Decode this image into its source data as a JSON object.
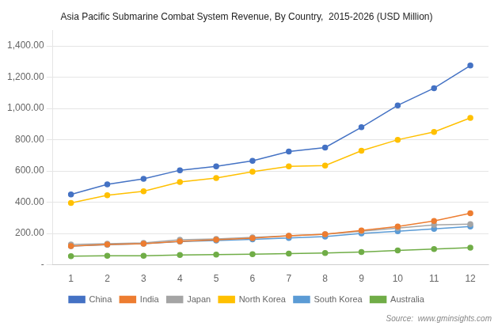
{
  "chart_data": {
    "type": "line",
    "title": "Asia Pacific Submarine Combat System Revenue, By Country,  2015-2026 (USD Million)",
    "x": [
      1,
      2,
      3,
      4,
      5,
      6,
      7,
      8,
      9,
      10,
      11,
      12
    ],
    "xlim": [
      0.5,
      12.5
    ],
    "xticks": [
      1,
      2,
      3,
      4,
      5,
      6,
      7,
      8,
      9,
      10,
      11,
      12
    ],
    "series": [
      {
        "name": "China",
        "color": "#4472C4",
        "values": [
          450,
          515,
          550,
          605,
          630,
          665,
          725,
          750,
          880,
          1020,
          1130,
          1275
        ]
      },
      {
        "name": "India",
        "color": "#ED7D31",
        "values": [
          120,
          130,
          135,
          150,
          160,
          170,
          185,
          195,
          220,
          245,
          280,
          330
        ]
      },
      {
        "name": "Japan",
        "color": "#A5A5A5",
        "values": [
          130,
          135,
          140,
          160,
          165,
          175,
          185,
          195,
          215,
          235,
          255,
          260
        ]
      },
      {
        "name": "North Korea",
        "color": "#FFC000",
        "values": [
          395,
          445,
          470,
          530,
          555,
          595,
          630,
          635,
          730,
          800,
          850,
          940
        ]
      },
      {
        "name": "South Korea",
        "color": "#5B9BD5",
        "values": [
          120,
          128,
          135,
          148,
          155,
          162,
          172,
          180,
          200,
          215,
          230,
          245
        ]
      },
      {
        "name": "Australia",
        "color": "#70AD47",
        "values": [
          55,
          58,
          58,
          62,
          65,
          68,
          72,
          75,
          82,
          92,
          100,
          110
        ]
      }
    ],
    "ylim": [
      0,
      1500
    ],
    "yticks": [
      {
        "value": 0,
        "label": "-"
      },
      {
        "value": 200,
        "label": "200.00"
      },
      {
        "value": 400,
        "label": "400.00"
      },
      {
        "value": 600,
        "label": "600.00"
      },
      {
        "value": 800,
        "label": "800.00"
      },
      {
        "value": 1000,
        "label": "1,000.00"
      },
      {
        "value": 1200,
        "label": "1,200.00"
      },
      {
        "value": 1400,
        "label": "1,400.00"
      }
    ],
    "grid": "y",
    "legend": "bottom",
    "marker": "circle",
    "annotations": [
      "Source:  www.gminsights.com"
    ]
  }
}
